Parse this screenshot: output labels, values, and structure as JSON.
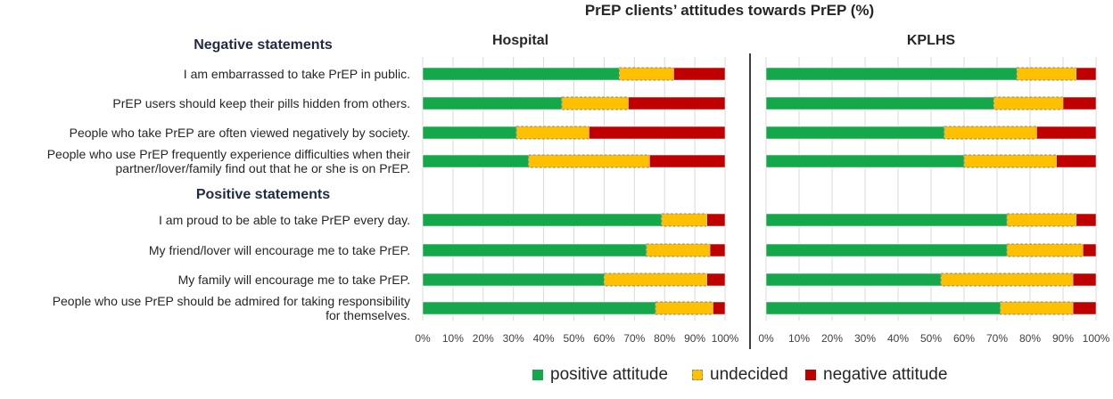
{
  "chart_data": {
    "type": "bar",
    "stacked": true,
    "orientation": "horizontal",
    "title": "PrEP clients’ attitudes towards PrEP (%)",
    "section_headers": [
      "Negative statements",
      "Positive statements"
    ],
    "categories": [
      "I am embarrassed to take PrEP in public.",
      "PrEP users should keep their pills hidden from others.",
      "People who take PrEP are often viewed negatively by society.",
      "People who use PrEP frequently experience difficulties when their partner/lover/family find out that he or she is on PrEP.",
      "I am proud to be able to take PrEP every day.",
      "My friend/lover will encourage me to take PrEP.",
      "My family will encourage me to take PrEP.",
      "People who use PrEP should be admired for taking responsibility for themselves."
    ],
    "category_lines": [
      [
        "I am embarrassed to take PrEP in public."
      ],
      [
        "PrEP users should keep their pills hidden from others."
      ],
      [
        "People who take PrEP are often viewed negatively by society."
      ],
      [
        "People who use PrEP frequently experience difficulties when their",
        "partner/lover/family find out that he or she is on PrEP."
      ],
      [
        "I am proud to be able to take PrEP every day."
      ],
      [
        "My friend/lover will encourage me to take PrEP."
      ],
      [
        "My family will encourage me to take PrEP."
      ],
      [
        "People who use PrEP should be admired for taking responsibility",
        "for themselves."
      ]
    ],
    "panels": [
      {
        "name": "Hospital",
        "series": [
          {
            "name": "positive attitude",
            "values": [
              65,
              46,
              31,
              35,
              79,
              74,
              60,
              77
            ]
          },
          {
            "name": "undecided",
            "values": [
              18,
              22,
              24,
              40,
              15,
              21,
              34,
              19
            ]
          },
          {
            "name": "negative attitude",
            "values": [
              17,
              32,
              45,
              25,
              6,
              5,
              6,
              4
            ]
          }
        ]
      },
      {
        "name": "KPLHS",
        "series": [
          {
            "name": "positive attitude",
            "values": [
              76,
              69,
              54,
              60,
              73,
              73,
              53,
              71
            ]
          },
          {
            "name": "undecided",
            "values": [
              18,
              21,
              28,
              28,
              21,
              23,
              40,
              22
            ]
          },
          {
            "name": "negative attitude",
            "values": [
              6,
              10,
              18,
              12,
              6,
              4,
              7,
              7
            ]
          }
        ]
      }
    ],
    "xlim": [
      0,
      100
    ],
    "xticks": [
      "0%",
      "10%",
      "20%",
      "30%",
      "40%",
      "50%",
      "60%",
      "70%",
      "80%",
      "90%",
      "100%"
    ],
    "colors": {
      "positive attitude": "#14a84a",
      "undecided": "#ffc000",
      "negative attitude": "#c00000"
    },
    "legend": [
      "positive attitude",
      "undecided",
      "negative attitude"
    ],
    "legend_position": "bottom"
  }
}
